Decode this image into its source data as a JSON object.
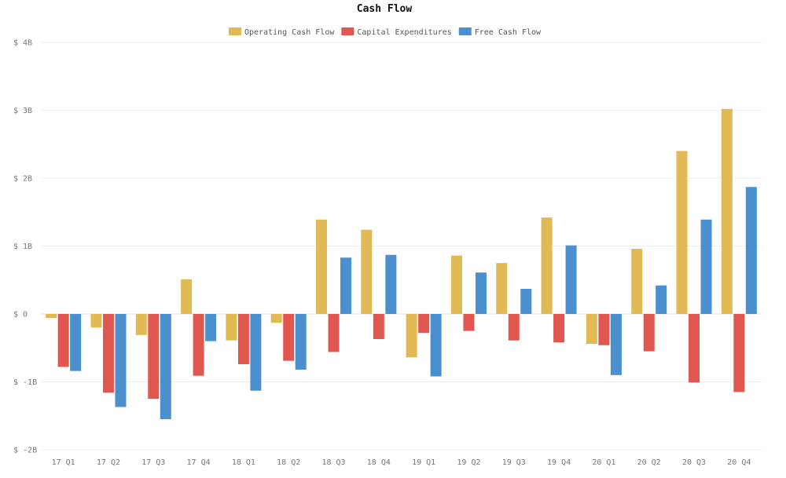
{
  "chart_data": {
    "type": "bar",
    "title": "Cash Flow",
    "categories": [
      "17 Q1",
      "17 Q2",
      "17 Q3",
      "17 Q4",
      "18 Q1",
      "18 Q2",
      "18 Q3",
      "18 Q4",
      "19 Q1",
      "19 Q2",
      "19 Q3",
      "19 Q4",
      "20 Q1",
      "20 Q2",
      "20 Q3",
      "20 Q4"
    ],
    "series": [
      {
        "name": "Operating Cash Flow",
        "color": "#e1b955",
        "values": [
          -0.06,
          -0.2,
          -0.31,
          0.51,
          -0.39,
          -0.13,
          1.39,
          1.24,
          -0.64,
          0.86,
          0.75,
          1.42,
          -0.44,
          0.96,
          2.4,
          3.02
        ]
      },
      {
        "name": "Capital Expenditures",
        "color": "#e0574f",
        "values": [
          -0.78,
          -1.16,
          -1.25,
          -0.91,
          -0.74,
          -0.69,
          -0.56,
          -0.37,
          -0.28,
          -0.25,
          -0.39,
          -0.42,
          -0.46,
          -0.55,
          -1.01,
          -1.15
        ]
      },
      {
        "name": "Free Cash Flow",
        "color": "#4a8fce",
        "values": [
          -0.84,
          -1.37,
          -1.55,
          -0.4,
          -1.13,
          -0.82,
          0.83,
          0.87,
          -0.92,
          0.61,
          0.37,
          1.01,
          -0.9,
          0.42,
          1.39,
          1.87
        ]
      }
    ],
    "ylim": [
      -2,
      4
    ],
    "yticks": [
      {
        "value": 4,
        "label": "$ 4B"
      },
      {
        "value": 3,
        "label": "$ 3B"
      },
      {
        "value": 2,
        "label": "$ 2B"
      },
      {
        "value": 1,
        "label": "$ 1B"
      },
      {
        "value": 0,
        "label": "$ 0"
      },
      {
        "value": -1,
        "label": "$ -1B"
      },
      {
        "value": -2,
        "label": "$ -2B"
      }
    ],
    "xlabel": "",
    "ylabel": "",
    "grid": true,
    "legend": "top-center"
  }
}
